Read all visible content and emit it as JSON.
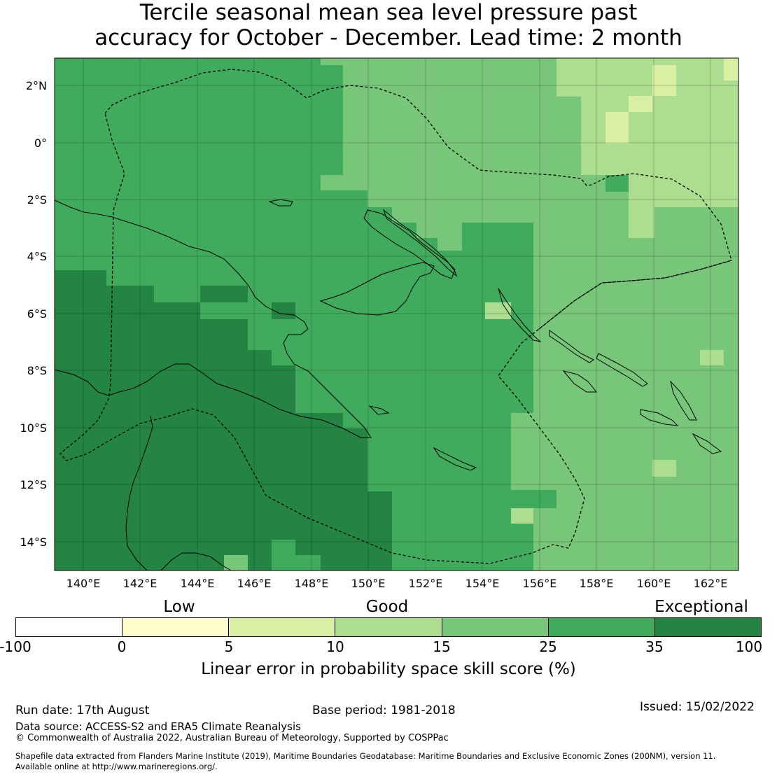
{
  "title": {
    "line1": "Tercile seasonal mean sea level pressure past",
    "line2": "accuracy for October - December. Lead time: 2 month"
  },
  "map": {
    "lat_labels": [
      "2°N",
      "0°",
      "2°S",
      "4°S",
      "6°S",
      "8°S",
      "10°S",
      "12°S",
      "14°S"
    ],
    "lon_labels": [
      "140°E",
      "142°E",
      "144°E",
      "146°E",
      "148°E",
      "150°E",
      "152°E",
      "154°E",
      "156°E",
      "158°E",
      "160°E",
      "162°E"
    ],
    "colors": {
      "cat_0_5": "#fdfdd0",
      "cat_5_10": "#d9f0a3",
      "cat_10_15": "#addd8e",
      "cat_15_25": "#78c679",
      "cat_25_35": "#41ab5d",
      "cat_35_100": "#238443"
    }
  },
  "legend": {
    "category_labels": [
      "Low",
      "Good",
      "Exceptional"
    ],
    "ticks": [
      "-100",
      "0",
      "5",
      "10",
      "15",
      "25",
      "35",
      "100"
    ],
    "colors": [
      "#ffffff",
      "#ffffcc",
      "#d9f0a3",
      "#addd8e",
      "#78c679",
      "#41ab5d",
      "#238443"
    ],
    "title": "Linear error in probability space skill score (%)"
  },
  "footer": {
    "run_date": "Run date: 17th August",
    "base_period": "Base period: 1981-2018",
    "issued": "Issued: 15/02/2022",
    "data_source": "Data source: ACCESS-S2 and ERA5 Climate Reanalysis",
    "copyright": "© Commonwealth of Australia 2022, Australian Bureau of Meteorology, Supported by COSPPac",
    "shapefile_line1": "Shapefile data extracted from Flanders Marine Institute (2019), Maritime Boundaries Geodatabase: Maritime Boundaries and Exclusive Economic Zones (200NM), version 11.",
    "shapefile_line2": "Available online at http://www.marineregions.org/."
  }
}
